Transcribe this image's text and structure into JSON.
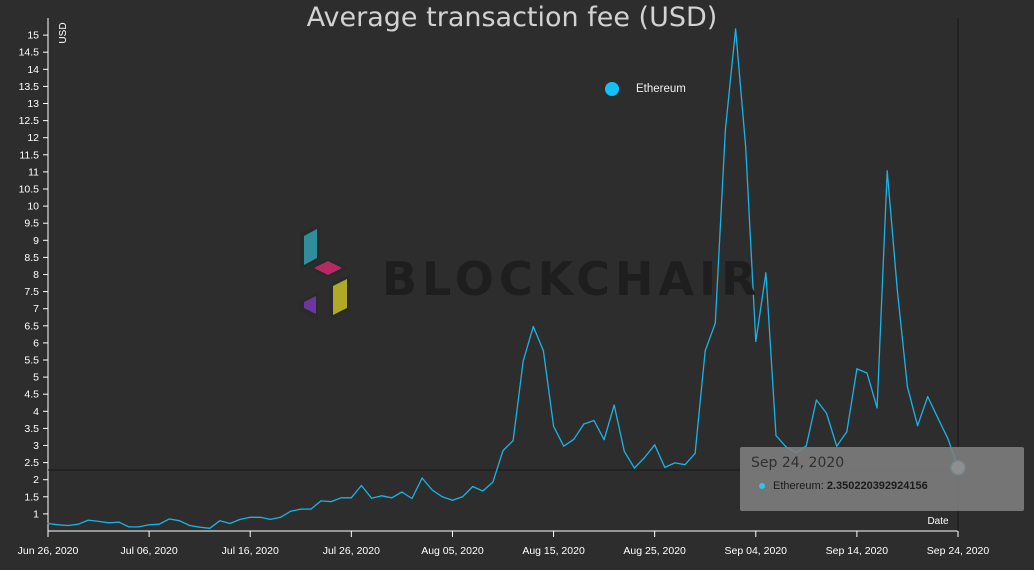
{
  "watermark": {
    "text": "BLOCKCHAIR"
  },
  "tooltip": {
    "date": "Sep 24, 2020",
    "series_label": "Ethereum:",
    "series_value": "2.350220392924156"
  },
  "legend": {
    "label": "Ethereum",
    "color": "#13c1f7"
  },
  "colors": {
    "line": "#1ab3e6",
    "background": "#2d2d2d",
    "axis": "#ffffff"
  },
  "chart_data": {
    "type": "line",
    "title": "Average transaction fee (USD)",
    "xlabel": "Date",
    "ylabel": "USD",
    "ylim": [
      0.5,
      15.5
    ],
    "xlim_days": [
      0,
      90
    ],
    "yticks": [
      1,
      1.5,
      2,
      2.5,
      3,
      3.5,
      4,
      4.5,
      5,
      5.5,
      6,
      6.5,
      7,
      7.5,
      8,
      8.5,
      9,
      9.5,
      10,
      10.5,
      11,
      11.5,
      12,
      12.5,
      13,
      13.5,
      14,
      14.5,
      15
    ],
    "ytick_labels": [
      "1",
      "1.5",
      "2",
      "2.5",
      "3",
      "3.5",
      "4",
      "4.5",
      "5",
      "5.5",
      "6",
      "6.5",
      "7",
      "7.5",
      "8",
      "8.5",
      "9",
      "9.5",
      "10",
      "10.5",
      "11",
      "11.5",
      "12",
      "12.5",
      "13",
      "13.5",
      "14",
      "14.5",
      "15"
    ],
    "xticks": [
      {
        "day": 0,
        "label": "Jun 26, 2020"
      },
      {
        "day": 10,
        "label": "Jul 06, 2020"
      },
      {
        "day": 20,
        "label": "Jul 16, 2020"
      },
      {
        "day": 30,
        "label": "Jul 26, 2020"
      },
      {
        "day": 40,
        "label": "Aug 05, 2020"
      },
      {
        "day": 50,
        "label": "Aug 15, 2020"
      },
      {
        "day": 60,
        "label": "Aug 25, 2020"
      },
      {
        "day": 70,
        "label": "Sep 04, 2020"
      },
      {
        "day": 80,
        "label": "Sep 14, 2020"
      },
      {
        "day": 90,
        "label": "Sep 24, 2020"
      }
    ],
    "series": [
      {
        "name": "Ethereum",
        "start_date": "Jun 26, 2020",
        "values": [
          0.72,
          0.68,
          0.66,
          0.7,
          0.82,
          0.78,
          0.74,
          0.76,
          0.62,
          0.62,
          0.68,
          0.7,
          0.85,
          0.8,
          0.66,
          0.61,
          0.58,
          0.8,
          0.72,
          0.84,
          0.9,
          0.9,
          0.84,
          0.9,
          1.08,
          1.14,
          1.14,
          1.38,
          1.36,
          1.47,
          1.47,
          1.83,
          1.46,
          1.53,
          1.47,
          1.64,
          1.45,
          2.05,
          1.7,
          1.5,
          1.4,
          1.5,
          1.8,
          1.67,
          1.93,
          2.85,
          3.14,
          5.47,
          6.48,
          5.77,
          3.56,
          2.98,
          3.18,
          3.63,
          3.73,
          3.17,
          4.18,
          2.83,
          2.34,
          2.65,
          3.02,
          2.36,
          2.49,
          2.44,
          2.77,
          5.77,
          6.58,
          12.24,
          15.18,
          11.72,
          6.04,
          8.05,
          3.29,
          2.96,
          2.79,
          2.99,
          4.33,
          3.94,
          2.98,
          3.4,
          5.24,
          5.12,
          4.1,
          11.03,
          7.55,
          4.72,
          3.58,
          4.43,
          3.81,
          3.2,
          2.35
        ]
      }
    ]
  }
}
